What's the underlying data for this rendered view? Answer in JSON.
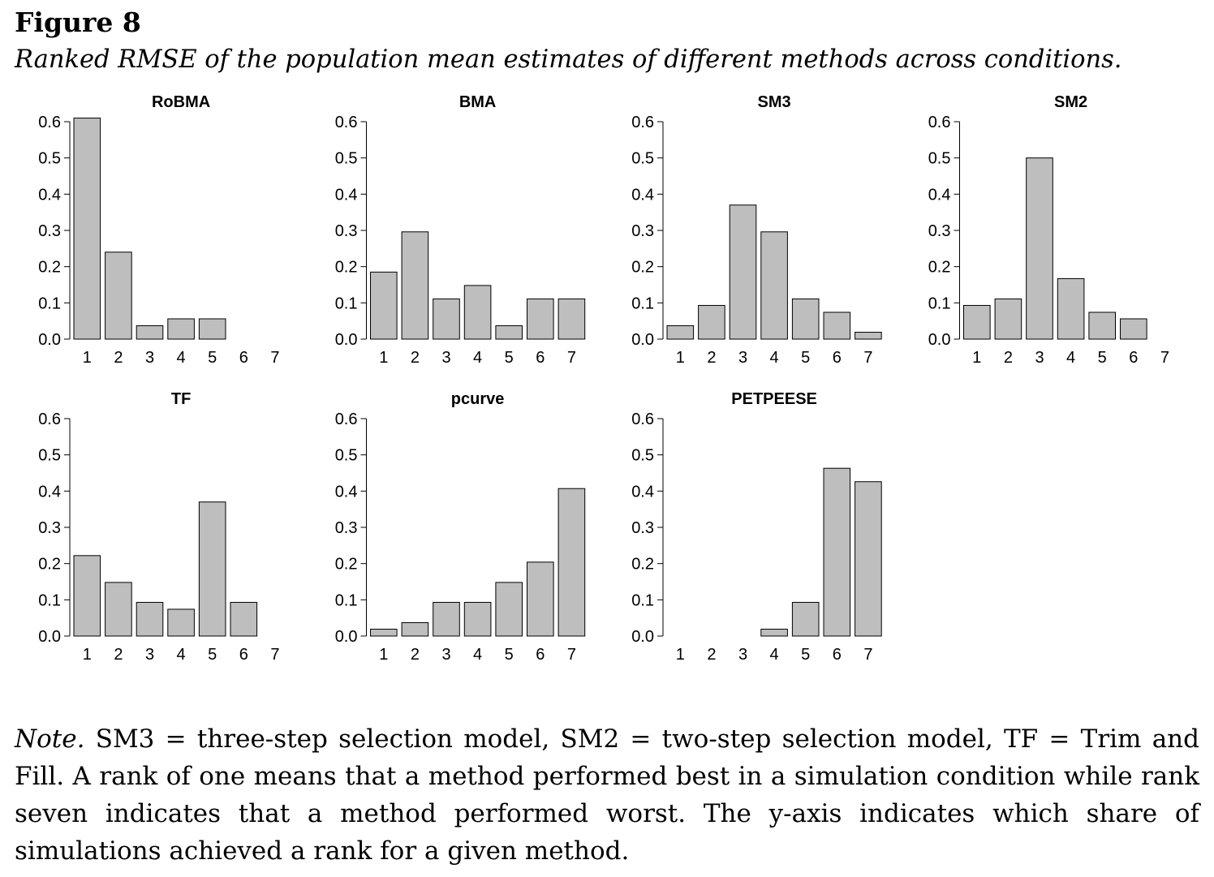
{
  "figure": {
    "label": "Figure 8",
    "caption": "Ranked RMSE of the population mean estimates of different methods across conditions."
  },
  "note": {
    "label": "Note.",
    "text": "SM3 = three-step selection model, SM2 = two-step selection model, TF = Trim and Fill. A rank of one means that a method performed best in a simulation condition while rank seven indicates that a method performed worst. The y-axis indicates which share of simulations achieved a rank for a given method."
  },
  "colors": {
    "bar_fill": "#bebebe",
    "bar_stroke": "#000000",
    "axis": "#000000"
  },
  "chart_data": [
    {
      "type": "bar",
      "title": "RoBMA",
      "xlabel": "",
      "ylabel": "",
      "categories": [
        "1",
        "2",
        "3",
        "4",
        "5",
        "6",
        "7"
      ],
      "values": [
        0.61,
        0.24,
        0.037,
        0.056,
        0.056,
        0.0,
        0.0
      ],
      "ylim": [
        0,
        0.6
      ],
      "yticks": [
        "0.0",
        "0.1",
        "0.2",
        "0.3",
        "0.4",
        "0.5",
        "0.6"
      ]
    },
    {
      "type": "bar",
      "title": "BMA",
      "xlabel": "",
      "ylabel": "",
      "categories": [
        "1",
        "2",
        "3",
        "4",
        "5",
        "6",
        "7"
      ],
      "values": [
        0.185,
        0.296,
        0.111,
        0.148,
        0.037,
        0.111,
        0.111
      ],
      "ylim": [
        0,
        0.6
      ],
      "yticks": [
        "0.0",
        "0.1",
        "0.2",
        "0.3",
        "0.4",
        "0.5",
        "0.6"
      ]
    },
    {
      "type": "bar",
      "title": "SM3",
      "xlabel": "",
      "ylabel": "",
      "categories": [
        "1",
        "2",
        "3",
        "4",
        "5",
        "6",
        "7"
      ],
      "values": [
        0.037,
        0.093,
        0.37,
        0.296,
        0.111,
        0.074,
        0.019
      ],
      "ylim": [
        0,
        0.6
      ],
      "yticks": [
        "0.0",
        "0.1",
        "0.2",
        "0.3",
        "0.4",
        "0.5",
        "0.6"
      ]
    },
    {
      "type": "bar",
      "title": "SM2",
      "xlabel": "",
      "ylabel": "",
      "categories": [
        "1",
        "2",
        "3",
        "4",
        "5",
        "6",
        "7"
      ],
      "values": [
        0.093,
        0.111,
        0.5,
        0.167,
        0.074,
        0.056,
        0.0
      ],
      "ylim": [
        0,
        0.6
      ],
      "yticks": [
        "0.0",
        "0.1",
        "0.2",
        "0.3",
        "0.4",
        "0.5",
        "0.6"
      ]
    },
    {
      "type": "bar",
      "title": "TF",
      "xlabel": "",
      "ylabel": "",
      "categories": [
        "1",
        "2",
        "3",
        "4",
        "5",
        "6",
        "7"
      ],
      "values": [
        0.222,
        0.148,
        0.093,
        0.074,
        0.37,
        0.093,
        0.0
      ],
      "ylim": [
        0,
        0.6
      ],
      "yticks": [
        "0.0",
        "0.1",
        "0.2",
        "0.3",
        "0.4",
        "0.5",
        "0.6"
      ]
    },
    {
      "type": "bar",
      "title": "pcurve",
      "xlabel": "",
      "ylabel": "",
      "categories": [
        "1",
        "2",
        "3",
        "4",
        "5",
        "6",
        "7"
      ],
      "values": [
        0.019,
        0.037,
        0.093,
        0.093,
        0.148,
        0.204,
        0.407
      ],
      "ylim": [
        0,
        0.6
      ],
      "yticks": [
        "0.0",
        "0.1",
        "0.2",
        "0.3",
        "0.4",
        "0.5",
        "0.6"
      ]
    },
    {
      "type": "bar",
      "title": "PETPEESE",
      "xlabel": "",
      "ylabel": "",
      "categories": [
        "1",
        "2",
        "3",
        "4",
        "5",
        "6",
        "7"
      ],
      "values": [
        0.0,
        0.0,
        0.0,
        0.019,
        0.093,
        0.463,
        0.426
      ],
      "ylim": [
        0,
        0.6
      ],
      "yticks": [
        "0.0",
        "0.1",
        "0.2",
        "0.3",
        "0.4",
        "0.5",
        "0.6"
      ]
    }
  ]
}
